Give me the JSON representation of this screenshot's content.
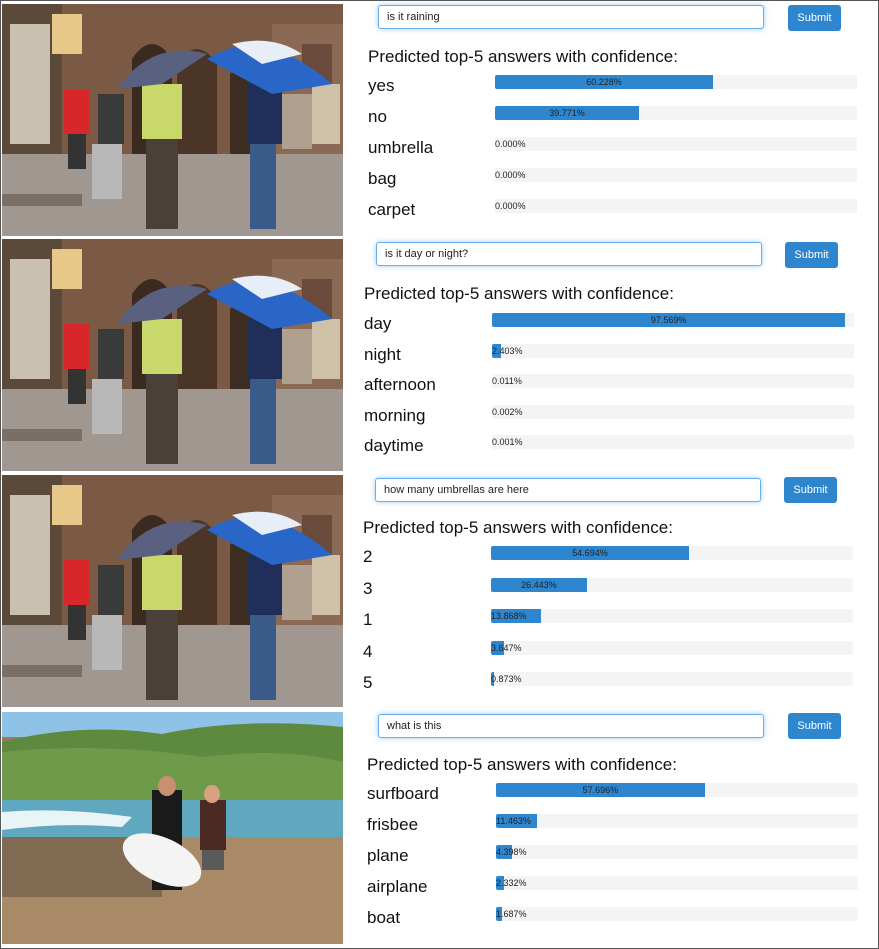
{
  "panels": [
    {
      "question": "is it raining",
      "submit_label": "Submit",
      "heading": "Predicted top-5 answers with confidence:",
      "answers": [
        {
          "label": "yes",
          "value": 60.228,
          "text": "60.228%"
        },
        {
          "label": "no",
          "value": 39.771,
          "text": "39.771%"
        },
        {
          "label": "umbrella",
          "value": 0.0,
          "text": "0.000%"
        },
        {
          "label": "bag",
          "value": 0.0,
          "text": "0.000%"
        },
        {
          "label": "carpet",
          "value": 0.0,
          "text": "0.000%"
        }
      ]
    },
    {
      "question": "is it day or night?",
      "submit_label": "Submit",
      "heading": "Predicted top-5 answers with confidence:",
      "answers": [
        {
          "label": "day",
          "value": 97.569,
          "text": "97.569%"
        },
        {
          "label": "night",
          "value": 2.403,
          "text": "2.403%"
        },
        {
          "label": "afternoon",
          "value": 0.011,
          "text": "0.011%"
        },
        {
          "label": "morning",
          "value": 0.002,
          "text": "0.002%"
        },
        {
          "label": "daytime",
          "value": 0.001,
          "text": "0.001%"
        }
      ]
    },
    {
      "question": "how many umbrellas are here",
      "submit_label": "Submit",
      "heading": "Predicted top-5 answers with confidence:",
      "answers": [
        {
          "label": "2",
          "value": 54.694,
          "text": "54.694%"
        },
        {
          "label": "3",
          "value": 26.443,
          "text": "26.443%"
        },
        {
          "label": "1",
          "value": 13.868,
          "text": "13.868%"
        },
        {
          "label": "4",
          "value": 3.647,
          "text": "3.647%"
        },
        {
          "label": "5",
          "value": 0.873,
          "text": "0.873%"
        }
      ]
    },
    {
      "question": "what is this",
      "submit_label": "Submit",
      "heading": "Predicted top-5 answers with confidence:",
      "answers": [
        {
          "label": "surfboard",
          "value": 57.696,
          "text": "57.696%"
        },
        {
          "label": "frisbee",
          "value": 11.463,
          "text": "11.463%"
        },
        {
          "label": "plane",
          "value": 4.398,
          "text": "4.398%"
        },
        {
          "label": "airplane",
          "value": 2.332,
          "text": "2.332%"
        },
        {
          "label": "boat",
          "value": 1.687,
          "text": "1.687%"
        }
      ]
    }
  ],
  "colors": {
    "bar_fill": "#2e86cf",
    "bar_track": "#f4f4f4",
    "button": "#2e86cf",
    "input_border": "#66afe9"
  },
  "icons": {
    "street_photo": "street-umbrella-photo",
    "beach_photo": "beach-surfer-photo"
  }
}
